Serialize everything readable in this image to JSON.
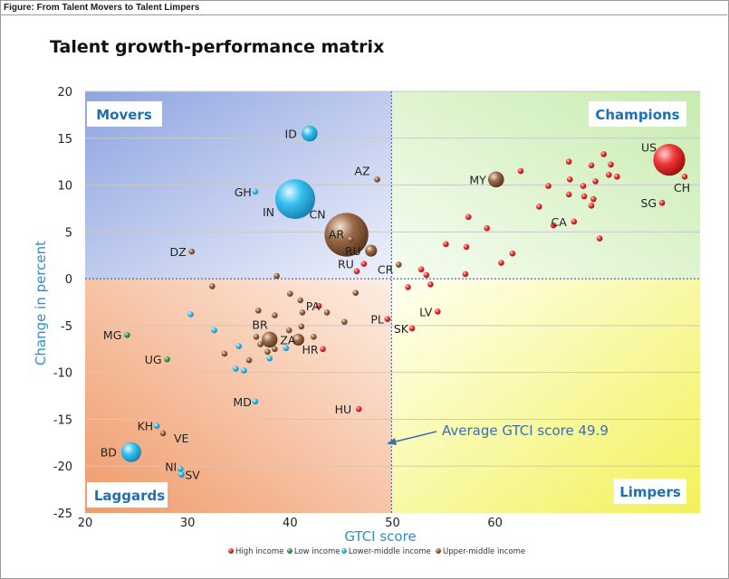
{
  "figure_label": "Figure: From Talent Movers to Talent Limpers",
  "colors": {
    "high": "#e8282b",
    "low": "#3aa655",
    "lower_middle": "#29b6e8",
    "upper_middle": "#8a5a3a",
    "axis_title": "#2e8fc9",
    "arrow": "#3a6fb0",
    "quadrant_label": "#1f6fb2"
  },
  "chart_data": {
    "type": "scatter",
    "title": "Talent growth-performance matrix",
    "xlabel": "GTCI score",
    "ylabel": "Change in percent",
    "xlim": [
      20,
      80
    ],
    "ylim": [
      -25,
      20
    ],
    "x_ticks": [
      20,
      30,
      40,
      50,
      60
    ],
    "y_ticks": [
      20,
      15,
      10,
      5,
      0,
      -5,
      -10,
      -15,
      -20,
      -25
    ],
    "reference_lines": {
      "x": 49.9,
      "y": 0
    },
    "grid": "horizontal",
    "quadrants": [
      "Movers",
      "Champions",
      "Laggards",
      "Limpers"
    ],
    "annotation": "Average GTCI score 49.9",
    "legend": {
      "placement": "bottom",
      "entries": [
        "High income",
        "Low income",
        "Lower-middle income",
        "Upper-middle income"
      ]
    },
    "series": [
      {
        "name": "High income",
        "points": [
          {
            "x": 77,
            "y": 12.7,
            "size": 8,
            "label": "US"
          },
          {
            "x": 78.5,
            "y": 10.9,
            "label": "CH"
          },
          {
            "x": 76.3,
            "y": 8.1,
            "label": "SG"
          },
          {
            "x": 67.7,
            "y": 6.1,
            "label": "CA"
          },
          {
            "x": 47.2,
            "y": 1.6,
            "label": "RU"
          },
          {
            "x": 54.4,
            "y": -3.5,
            "label": "LV"
          },
          {
            "x": 51.9,
            "y": -5.3,
            "label": "SK"
          },
          {
            "x": 49.5,
            "y": -4.3,
            "label": "PL"
          },
          {
            "x": 46.7,
            "y": -13.9,
            "label": "HU"
          },
          {
            "x": 43.2,
            "y": -7.5,
            "label": "HR"
          },
          {
            "x": 42.8,
            "y": -2.9,
            "label": "PA"
          },
          {
            "x": 46.5,
            "y": 0.8
          },
          {
            "x": 62.5,
            "y": 11.5
          },
          {
            "x": 65.2,
            "y": 9.9
          },
          {
            "x": 67.2,
            "y": 12.5
          },
          {
            "x": 69.4,
            "y": 12.1
          },
          {
            "x": 70.6,
            "y": 13.3
          },
          {
            "x": 71.3,
            "y": 12.2
          },
          {
            "x": 71.9,
            "y": 10.9
          },
          {
            "x": 71.1,
            "y": 11.1
          },
          {
            "x": 69.8,
            "y": 10.4
          },
          {
            "x": 68.6,
            "y": 9.9
          },
          {
            "x": 68.7,
            "y": 8.8
          },
          {
            "x": 67.3,
            "y": 10.6
          },
          {
            "x": 67.2,
            "y": 9.0
          },
          {
            "x": 69.6,
            "y": 8.5
          },
          {
            "x": 69.4,
            "y": 7.8
          },
          {
            "x": 64.3,
            "y": 7.7
          },
          {
            "x": 65.7,
            "y": 5.7
          },
          {
            "x": 57.4,
            "y": 6.6
          },
          {
            "x": 59.2,
            "y": 5.4
          },
          {
            "x": 57.2,
            "y": 3.4
          },
          {
            "x": 55.2,
            "y": 3.7
          },
          {
            "x": 61.7,
            "y": 2.7
          },
          {
            "x": 60.6,
            "y": 1.7
          },
          {
            "x": 57.1,
            "y": 0.5
          },
          {
            "x": 70.2,
            "y": 4.3
          },
          {
            "x": 52.8,
            "y": 1.0
          },
          {
            "x": 53.3,
            "y": 0.4
          },
          {
            "x": 53.7,
            "y": -0.6
          },
          {
            "x": 51.5,
            "y": -0.9
          }
        ]
      },
      {
        "name": "Low income",
        "points": [
          {
            "x": 24.1,
            "y": -6.0,
            "label": "MG"
          },
          {
            "x": 28.0,
            "y": -8.6,
            "label": "UG"
          }
        ]
      },
      {
        "name": "Lower-middle income",
        "points": [
          {
            "x": 41.9,
            "y": 15.5,
            "size": 4,
            "label": "ID"
          },
          {
            "x": 40.5,
            "y": 8.5,
            "size": 10,
            "label": "IN"
          },
          {
            "x": 36.6,
            "y": 9.3,
            "label": "GH"
          },
          {
            "x": 36.6,
            "y": -13.1,
            "label": "MD"
          },
          {
            "x": 27.0,
            "y": -15.7,
            "label": "KH"
          },
          {
            "x": 24.5,
            "y": -18.5,
            "size": 5,
            "label": "BD"
          },
          {
            "x": 29.3,
            "y": -20.3,
            "label": "NI"
          },
          {
            "x": 29.4,
            "y": -20.9,
            "label": "SV"
          },
          {
            "x": 30.3,
            "y": -3.8
          },
          {
            "x": 32.6,
            "y": -5.5
          },
          {
            "x": 35.0,
            "y": -7.2
          },
          {
            "x": 34.7,
            "y": -9.6
          },
          {
            "x": 35.5,
            "y": -9.8
          },
          {
            "x": 38.0,
            "y": -8.5
          },
          {
            "x": 39.6,
            "y": -7.4
          }
        ]
      },
      {
        "name": "Upper-middle income",
        "points": [
          {
            "x": 48.5,
            "y": 10.6,
            "label": "AZ"
          },
          {
            "x": 60.1,
            "y": 10.6,
            "size": 4,
            "label": "MY"
          },
          {
            "x": 45.5,
            "y": 4.7,
            "size": 11,
            "label": "CN"
          },
          {
            "x": 45.9,
            "y": 4.2,
            "label": "AR"
          },
          {
            "x": 47.9,
            "y": 3.0,
            "size": 3,
            "label": "RU"
          },
          {
            "x": 50.6,
            "y": 1.5,
            "label": "CR"
          },
          {
            "x": 30.4,
            "y": 2.9,
            "label": "DZ"
          },
          {
            "x": 38.0,
            "y": -6.5,
            "size": 4,
            "label": "BR"
          },
          {
            "x": 40.8,
            "y": -6.5,
            "size": 3,
            "label": "ZA"
          },
          {
            "x": 32.4,
            "y": -0.8
          },
          {
            "x": 38.7,
            "y": 0.3
          },
          {
            "x": 36.9,
            "y": -3.4
          },
          {
            "x": 38.5,
            "y": -3.9
          },
          {
            "x": 40.0,
            "y": -1.6
          },
          {
            "x": 41.0,
            "y": -2.3
          },
          {
            "x": 41.2,
            "y": -3.6
          },
          {
            "x": 43.6,
            "y": -3.6
          },
          {
            "x": 45.3,
            "y": -4.6
          },
          {
            "x": 46.4,
            "y": -1.5
          },
          {
            "x": 39.9,
            "y": -5.5
          },
          {
            "x": 41.1,
            "y": -5.1
          },
          {
            "x": 42.3,
            "y": -6.2
          },
          {
            "x": 36.7,
            "y": -6.2
          },
          {
            "x": 37.1,
            "y": -7.0
          },
          {
            "x": 37.8,
            "y": -7.8
          },
          {
            "x": 38.5,
            "y": -7.5
          },
          {
            "x": 33.6,
            "y": -8.0
          },
          {
            "x": 36.0,
            "y": -8.7
          },
          {
            "x": 27.6,
            "y": -16.5,
            "label": "VE"
          }
        ]
      }
    ]
  }
}
